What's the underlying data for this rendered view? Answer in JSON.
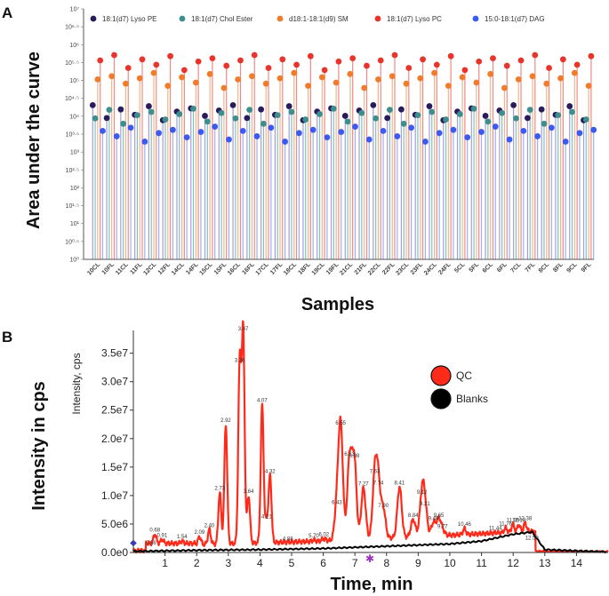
{
  "chart_data": [
    {
      "panel_label": "A",
      "type": "scatter",
      "subtype": "lollipop",
      "title": "",
      "xlabel": "Samples",
      "ylabel": "Area under the curve",
      "yscale": "log10",
      "ylim_exp": [
        0,
        7
      ],
      "y_tick_labels": [
        "10⁰",
        "10⁰·⁵",
        "10¹",
        "10¹·⁵",
        "10²",
        "10²·⁵",
        "10³",
        "10³·⁵",
        "10⁴",
        "10⁴·⁵",
        "10⁵",
        "10⁵·⁵",
        "10⁶",
        "10⁶·⁵",
        "10⁷"
      ],
      "categories": [
        "10CL",
        "10FL",
        "11CL",
        "11FL",
        "12CL",
        "12FL",
        "14CL",
        "14FL",
        "15CL",
        "15FL",
        "16CL",
        "16FL",
        "17CL",
        "17FL",
        "18CL",
        "18FL",
        "19CL",
        "19FL",
        "21CL",
        "21FL",
        "22CL",
        "22FL",
        "23CL",
        "23FL",
        "24CL",
        "24FL",
        "5CL",
        "5FL",
        "6CL",
        "6FL",
        "7CL",
        "7FL",
        "8CL",
        "8FL",
        "9CL",
        "9FL"
      ],
      "legend_position": "top",
      "series": [
        {
          "name": "18:1(d7) Lyso PE",
          "color": "#2a1b5c",
          "log10_values": [
            4.1,
            4.1,
            4.1,
            4.1,
            4.1,
            4.1,
            4.1,
            4.1,
            4.1,
            4.1,
            4.1,
            4.1,
            4.1,
            4.1,
            4.1,
            4.1,
            4.1,
            4.1,
            4.1,
            4.1,
            4.1,
            4.1,
            4.1,
            4.1,
            4.1,
            4.1,
            4.1,
            4.1,
            4.1,
            4.1,
            4.1,
            4.1,
            4.1,
            4.1,
            4.1,
            4.1
          ],
          "values": [
            12589,
            12589,
            12589,
            12589,
            12589,
            12589,
            12589,
            12589,
            12589,
            12589,
            12589,
            12589,
            12589,
            12589,
            12589,
            12589,
            12589,
            12589,
            12589,
            12589,
            12589,
            12589,
            12589,
            12589,
            12589,
            12589,
            12589,
            12589,
            12589,
            12589,
            12589,
            12589,
            12589,
            12589,
            12589,
            12589
          ]
        },
        {
          "name": "18:1(d7) Chol Ester",
          "color": "#3d8f8f",
          "log10_values": [
            4.0,
            4.0,
            4.0,
            4.0,
            4.0,
            4.0,
            4.0,
            4.0,
            4.0,
            4.0,
            4.0,
            4.0,
            4.0,
            4.0,
            4.0,
            4.0,
            4.0,
            4.0,
            4.0,
            4.0,
            4.0,
            4.0,
            4.0,
            4.0,
            4.0,
            4.0,
            4.0,
            4.0,
            4.0,
            4.0,
            4.0,
            4.0,
            4.0,
            4.0,
            4.0,
            4.0
          ],
          "values": [
            10000,
            10000,
            10000,
            10000,
            10000,
            10000,
            10000,
            10000,
            10000,
            10000,
            10000,
            10000,
            10000,
            10000,
            10000,
            10000,
            10000,
            10000,
            10000,
            10000,
            10000,
            10000,
            10000,
            10000,
            10000,
            10000,
            10000,
            10000,
            10000,
            10000,
            10000,
            10000,
            10000,
            10000,
            10000,
            10000
          ]
        },
        {
          "name": "d18:1-18:1(d9) SM",
          "color": "#f07b2b",
          "log10_values": [
            5.0,
            5.0,
            5.0,
            5.0,
            5.0,
            5.0,
            5.0,
            5.0,
            5.0,
            5.0,
            5.0,
            5.0,
            5.0,
            5.0,
            5.0,
            5.0,
            5.0,
            5.0,
            5.0,
            5.0,
            5.0,
            5.0,
            5.0,
            5.0,
            5.0,
            5.0,
            5.0,
            5.0,
            5.0,
            5.0,
            5.0,
            5.0,
            5.0,
            5.0,
            5.0,
            5.0
          ],
          "values": [
            100000,
            100000,
            100000,
            100000,
            100000,
            100000,
            100000,
            100000,
            100000,
            100000,
            100000,
            100000,
            100000,
            100000,
            100000,
            100000,
            100000,
            100000,
            100000,
            100000,
            100000,
            100000,
            100000,
            100000,
            100000,
            100000,
            100000,
            100000,
            100000,
            100000,
            100000,
            100000,
            100000,
            100000,
            100000,
            100000
          ]
        },
        {
          "name": "18:1(d7) Lyso PC",
          "color": "#e8342a",
          "log10_values": [
            5.5,
            5.5,
            5.5,
            5.5,
            5.5,
            5.5,
            5.5,
            5.5,
            5.5,
            5.5,
            5.5,
            5.5,
            5.5,
            5.5,
            5.5,
            5.5,
            5.5,
            5.5,
            5.5,
            5.5,
            5.5,
            5.5,
            5.5,
            5.5,
            5.5,
            5.5,
            5.5,
            5.5,
            5.5,
            5.5,
            5.5,
            5.5,
            5.5,
            5.5,
            5.5,
            5.5
          ],
          "values": [
            316228,
            316228,
            316228,
            316228,
            316228,
            316228,
            316228,
            316228,
            316228,
            316228,
            316228,
            316228,
            316228,
            316228,
            316228,
            316228,
            316228,
            316228,
            316228,
            316228,
            316228,
            316228,
            316228,
            316228,
            316228,
            316228,
            316228,
            316228,
            316228,
            316228,
            316228,
            316228,
            316228,
            316228,
            316228,
            316228
          ]
        },
        {
          "name": "15:0-18:1(d7) DAG",
          "color": "#3b5bf0",
          "log10_values": [
            3.5,
            3.5,
            3.5,
            3.5,
            3.5,
            3.5,
            3.5,
            3.5,
            3.5,
            3.5,
            3.5,
            3.5,
            3.5,
            3.5,
            3.5,
            3.5,
            3.5,
            3.5,
            3.5,
            3.5,
            3.5,
            3.5,
            3.5,
            3.5,
            3.5,
            3.5,
            3.5,
            3.5,
            3.5,
            3.5,
            3.5,
            3.5,
            3.5,
            3.5,
            3.5,
            3.5
          ],
          "values": [
            3162,
            3162,
            3162,
            3162,
            3162,
            3162,
            3162,
            3162,
            3162,
            3162,
            3162,
            3162,
            3162,
            3162,
            3162,
            3162,
            3162,
            3162,
            3162,
            3162,
            3162,
            3162,
            3162,
            3162,
            3162,
            3162,
            3162,
            3162,
            3162,
            3162,
            3162,
            3162,
            3162,
            3162,
            3162,
            3162
          ]
        }
      ]
    },
    {
      "panel_label": "B",
      "type": "line",
      "title": "",
      "xlabel": "Time, min",
      "ylabel": "Intensity in cps",
      "ylabel_inner": "Intensity, cps",
      "xlim": [
        0,
        15
      ],
      "ylim": [
        0,
        39000000
      ],
      "x_ticks": [
        1,
        2,
        3,
        4,
        5,
        6,
        7,
        8,
        9,
        10,
        11,
        12,
        13,
        14
      ],
      "y_ticks": [
        0,
        5000000,
        10000000,
        15000000,
        20000000,
        25000000,
        30000000,
        35000000
      ],
      "y_tick_labels": [
        "0.0e0",
        "5.0e6",
        "1.0e7",
        "1.5e7",
        "2.0e7",
        "2.5e7",
        "3.0e7",
        "3.5e7"
      ],
      "legend_position": "right",
      "series": [
        {
          "name": "QC",
          "color": "#ff2a1a",
          "peaks": [
            {
              "x": 0.56,
              "y": 900000
            },
            {
              "x": 0.68,
              "y": 3200000
            },
            {
              "x": 0.91,
              "y": 2300000
            },
            {
              "x": 1.54,
              "y": 2000000
            },
            {
              "x": 2.09,
              "y": 2800000
            },
            {
              "x": 2.4,
              "y": 4000000
            },
            {
              "x": 2.73,
              "y": 10500000
            },
            {
              "x": 2.92,
              "y": 22500000
            },
            {
              "x": 3.36,
              "y": 33000000
            },
            {
              "x": 3.47,
              "y": 38500000
            },
            {
              "x": 3.64,
              "y": 10000000
            },
            {
              "x": 4.07,
              "y": 26000000
            },
            {
              "x": 4.21,
              "y": 5500000
            },
            {
              "x": 4.32,
              "y": 13500000
            },
            {
              "x": 4.88,
              "y": 1600000
            },
            {
              "x": 5.7,
              "y": 2200000
            },
            {
              "x": 6.02,
              "y": 2400000
            },
            {
              "x": 6.43,
              "y": 8000000
            },
            {
              "x": 6.55,
              "y": 22000000
            },
            {
              "x": 6.83,
              "y": 16500000
            },
            {
              "x": 6.98,
              "y": 16200000
            },
            {
              "x": 7.27,
              "y": 11300000
            },
            {
              "x": 7.63,
              "y": 13500000
            },
            {
              "x": 7.74,
              "y": 11500000
            },
            {
              "x": 7.9,
              "y": 7500000
            },
            {
              "x": 8.41,
              "y": 11500000
            },
            {
              "x": 8.84,
              "y": 5800000
            },
            {
              "x": 9.12,
              "y": 9800000
            },
            {
              "x": 9.21,
              "y": 7800000
            },
            {
              "x": 9.48,
              "y": 5200000
            },
            {
              "x": 9.65,
              "y": 5800000
            },
            {
              "x": 9.77,
              "y": 3800000
            },
            {
              "x": 10.46,
              "y": 4200000
            },
            {
              "x": 11.44,
              "y": 3500000
            },
            {
              "x": 11.76,
              "y": 4300000
            },
            {
              "x": 11.99,
              "y": 4900000
            },
            {
              "x": 12.18,
              "y": 4900000
            },
            {
              "x": 12.38,
              "y": 5200000
            },
            {
              "x": 12.59,
              "y": 1800000
            }
          ]
        },
        {
          "name": "Blanks",
          "color": "#000000",
          "points": [
            [
              0.0,
              200000
            ],
            [
              2.0,
              400000
            ],
            [
              4.0,
              500000
            ],
            [
              6.0,
              700000
            ],
            [
              8.0,
              1100000
            ],
            [
              10.0,
              1500000
            ],
            [
              11.0,
              2000000
            ],
            [
              12.0,
              3200000
            ],
            [
              12.6,
              3600000
            ],
            [
              13.0,
              500000
            ],
            [
              15.0,
              100000
            ]
          ]
        }
      ]
    }
  ]
}
